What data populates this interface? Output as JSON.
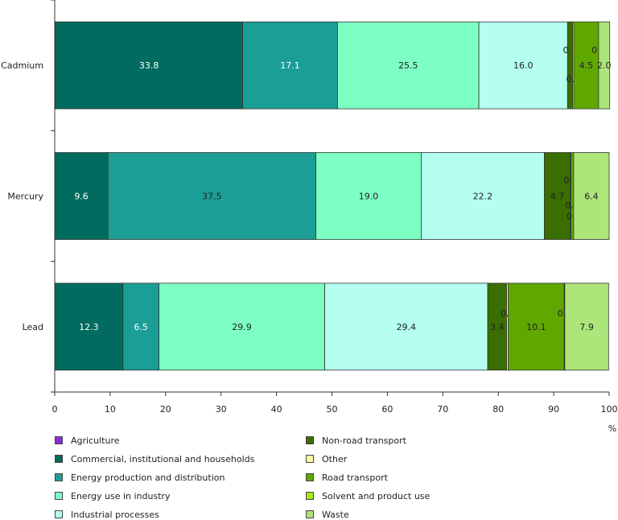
{
  "chart_data": {
    "type": "bar",
    "orientation": "horizontal",
    "stacked": true,
    "categories": [
      "Cadmium",
      "Mercury",
      "Lead"
    ],
    "xlabel": "%",
    "xlim": [
      0,
      100
    ],
    "xticks": [
      "0",
      "10",
      "20",
      "30",
      "40",
      "50",
      "60",
      "70",
      "80",
      "90",
      "100"
    ],
    "grid": false,
    "legend_position": "bottom",
    "series": [
      {
        "name": "Agriculture",
        "color": "#8a2be2",
        "values": [
          0.1,
          0.0,
          0.0
        ]
      },
      {
        "name": "Commercial, institutional and households",
        "color": "#006b5e",
        "values": [
          33.8,
          9.6,
          12.3
        ]
      },
      {
        "name": "Energy production and distribution",
        "color": "#1a9e95",
        "values": [
          17.1,
          37.5,
          6.5
        ]
      },
      {
        "name": "Energy use in industry",
        "color": "#7dffc4",
        "values": [
          25.5,
          19.0,
          29.9
        ]
      },
      {
        "name": "Industrial processes",
        "color": "#b4fff0",
        "values": [
          16.0,
          22.2,
          29.4
        ]
      },
      {
        "name": "Non-road transport",
        "color": "#3a6e00",
        "values": [
          0.9,
          4.7,
          3.4
        ]
      },
      {
        "name": "Other",
        "color": "#fafaa0",
        "values": [
          0.2,
          0.1,
          0.3
        ]
      },
      {
        "name": "Road transport",
        "color": "#5fa800",
        "values": [
          4.5,
          0.5,
          10.1
        ]
      },
      {
        "name": "Solvent and product use",
        "color": "#a6e61a",
        "values": [
          0.0,
          0.0,
          0.1
        ]
      },
      {
        "name": "Waste",
        "color": "#ace57a",
        "values": [
          2.0,
          6.4,
          7.9
        ]
      }
    ]
  }
}
